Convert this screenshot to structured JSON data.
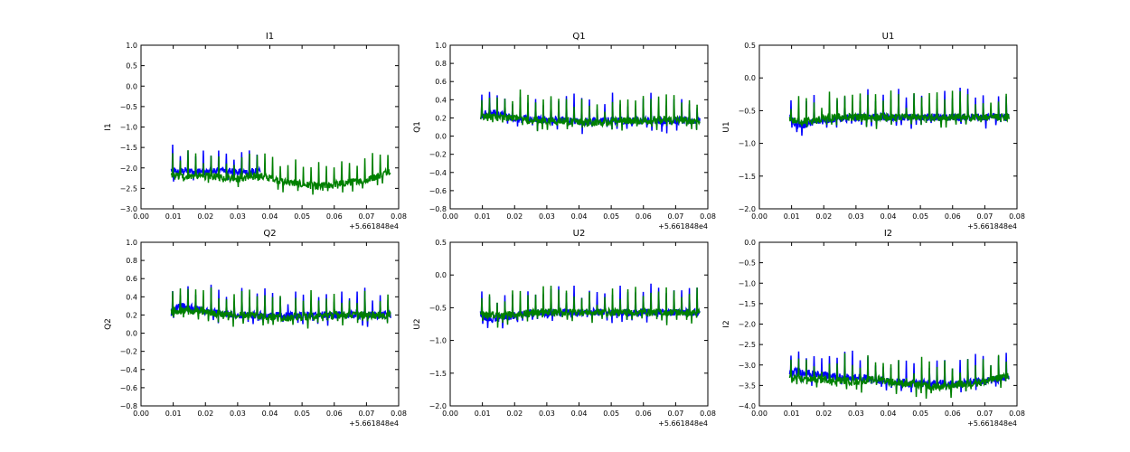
{
  "figure": {
    "background": "#ffffff",
    "series_colors": {
      "first": "#0000ff",
      "second": "#008000"
    }
  },
  "chart_data": [
    {
      "type": "line",
      "title": "I1",
      "xlabel": "",
      "ylabel": "I1",
      "xlim": [
        0.0,
        0.08
      ],
      "ylim": [
        -3.0,
        1.0
      ],
      "x_offset_label": "+5.661848e4",
      "x_ticks": [
        0.0,
        0.01,
        0.02,
        0.03,
        0.04,
        0.05,
        0.06,
        0.07,
        0.08
      ],
      "y_ticks": [
        -3.0,
        -2.5,
        -2.0,
        -1.5,
        -1.0,
        -0.5,
        0.0,
        0.5,
        1.0
      ],
      "series": [
        {
          "color": "#0000ff",
          "x": [
            0.0094,
            0.012,
            0.015,
            0.02,
            0.025,
            0.03,
            0.035,
            0.037
          ],
          "y": [
            -2.05,
            -2.1,
            -2.05,
            -2.1,
            -2.05,
            -2.1,
            -2.1,
            -2.1
          ]
        },
        {
          "color": "#008000",
          "x": [
            0.0094,
            0.015,
            0.02,
            0.03,
            0.037,
            0.04,
            0.045,
            0.05,
            0.055,
            0.06,
            0.065,
            0.07,
            0.075,
            0.0775
          ],
          "y": [
            -2.2,
            -2.2,
            -2.2,
            -2.25,
            -2.2,
            -2.25,
            -2.35,
            -2.4,
            -2.45,
            -2.4,
            -2.35,
            -2.3,
            -2.15,
            -2.05
          ]
        }
      ]
    },
    {
      "type": "line",
      "title": "Q1",
      "xlabel": "",
      "ylabel": "Q1",
      "xlim": [
        0.0,
        0.08
      ],
      "ylim": [
        -0.8,
        1.0
      ],
      "x_offset_label": "+5.661848e4",
      "x_ticks": [
        0.0,
        0.01,
        0.02,
        0.03,
        0.04,
        0.05,
        0.06,
        0.07,
        0.08
      ],
      "y_ticks": [
        -0.8,
        -0.6,
        -0.4,
        -0.2,
        0.0,
        0.2,
        0.4,
        0.6,
        0.8,
        1.0
      ],
      "series": [
        {
          "color": "#0000ff",
          "x": [
            0.0094,
            0.011,
            0.013,
            0.015,
            0.02,
            0.025,
            0.03,
            0.035,
            0.04,
            0.05,
            0.06,
            0.07,
            0.0775
          ],
          "y": [
            0.2,
            0.25,
            0.26,
            0.24,
            0.2,
            0.18,
            0.18,
            0.18,
            0.16,
            0.17,
            0.17,
            0.17,
            0.17
          ]
        },
        {
          "color": "#008000",
          "x": [
            0.0094,
            0.015,
            0.02,
            0.025,
            0.03,
            0.035,
            0.04,
            0.045,
            0.05,
            0.055,
            0.06,
            0.065,
            0.07,
            0.0775
          ],
          "y": [
            0.22,
            0.21,
            0.2,
            0.18,
            0.17,
            0.17,
            0.15,
            0.15,
            0.16,
            0.17,
            0.17,
            0.18,
            0.18,
            0.17
          ]
        }
      ]
    },
    {
      "type": "line",
      "title": "U1",
      "xlabel": "",
      "ylabel": "U1",
      "xlim": [
        0.0,
        0.08
      ],
      "ylim": [
        -2.0,
        0.5
      ],
      "x_offset_label": "+5.661848e4",
      "x_ticks": [
        0.0,
        0.01,
        0.02,
        0.03,
        0.04,
        0.05,
        0.06,
        0.07,
        0.08
      ],
      "y_ticks": [
        -2.0,
        -1.5,
        -1.0,
        -0.5,
        0.0,
        0.5
      ],
      "series": [
        {
          "color": "#0000ff",
          "x": [
            0.0094,
            0.011,
            0.013,
            0.015,
            0.02,
            0.025,
            0.03,
            0.035,
            0.04,
            0.05,
            0.06,
            0.07,
            0.0775
          ],
          "y": [
            -0.62,
            -0.7,
            -0.72,
            -0.7,
            -0.65,
            -0.62,
            -0.6,
            -0.6,
            -0.6,
            -0.6,
            -0.6,
            -0.6,
            -0.6
          ]
        },
        {
          "color": "#008000",
          "x": [
            0.0094,
            0.015,
            0.02,
            0.025,
            0.03,
            0.035,
            0.04,
            0.05,
            0.06,
            0.07,
            0.0775
          ],
          "y": [
            -0.65,
            -0.66,
            -0.63,
            -0.6,
            -0.6,
            -0.6,
            -0.6,
            -0.6,
            -0.6,
            -0.6,
            -0.6
          ]
        }
      ]
    },
    {
      "type": "line",
      "title": "Q2",
      "xlabel": "",
      "ylabel": "Q2",
      "xlim": [
        0.0,
        0.08
      ],
      "ylim": [
        -0.8,
        1.0
      ],
      "x_offset_label": "+5.661848e4",
      "x_ticks": [
        0.0,
        0.01,
        0.02,
        0.03,
        0.04,
        0.05,
        0.06,
        0.07,
        0.08
      ],
      "y_ticks": [
        -0.8,
        -0.6,
        -0.4,
        -0.2,
        0.0,
        0.2,
        0.4,
        0.6,
        0.8,
        1.0
      ],
      "series": [
        {
          "color": "#0000ff",
          "x": [
            0.0094,
            0.011,
            0.013,
            0.015,
            0.02,
            0.025,
            0.03,
            0.035,
            0.04,
            0.05,
            0.06,
            0.07,
            0.0775
          ],
          "y": [
            0.22,
            0.28,
            0.3,
            0.28,
            0.24,
            0.22,
            0.2,
            0.2,
            0.19,
            0.2,
            0.2,
            0.2,
            0.2
          ]
        },
        {
          "color": "#008000",
          "x": [
            0.0094,
            0.015,
            0.02,
            0.025,
            0.03,
            0.035,
            0.04,
            0.045,
            0.05,
            0.055,
            0.06,
            0.065,
            0.07,
            0.0775
          ],
          "y": [
            0.24,
            0.25,
            0.23,
            0.21,
            0.2,
            0.2,
            0.18,
            0.17,
            0.18,
            0.19,
            0.2,
            0.2,
            0.2,
            0.19
          ]
        }
      ]
    },
    {
      "type": "line",
      "title": "U2",
      "xlabel": "",
      "ylabel": "U2",
      "xlim": [
        0.0,
        0.08
      ],
      "ylim": [
        -2.0,
        0.5
      ],
      "x_offset_label": "+5.661848e4",
      "x_ticks": [
        0.0,
        0.01,
        0.02,
        0.03,
        0.04,
        0.05,
        0.06,
        0.07,
        0.08
      ],
      "y_ticks": [
        -2.0,
        -1.5,
        -1.0,
        -0.5,
        0.0,
        0.5
      ],
      "series": [
        {
          "color": "#0000ff",
          "x": [
            0.0094,
            0.011,
            0.013,
            0.015,
            0.02,
            0.025,
            0.03,
            0.035,
            0.04,
            0.05,
            0.06,
            0.07,
            0.0775
          ],
          "y": [
            -0.58,
            -0.65,
            -0.68,
            -0.66,
            -0.62,
            -0.58,
            -0.57,
            -0.57,
            -0.57,
            -0.57,
            -0.57,
            -0.57,
            -0.57
          ]
        },
        {
          "color": "#008000",
          "x": [
            0.0094,
            0.015,
            0.02,
            0.025,
            0.03,
            0.035,
            0.04,
            0.05,
            0.06,
            0.07,
            0.0775
          ],
          "y": [
            -0.6,
            -0.62,
            -0.6,
            -0.58,
            -0.57,
            -0.57,
            -0.57,
            -0.57,
            -0.57,
            -0.57,
            -0.57
          ]
        }
      ]
    },
    {
      "type": "line",
      "title": "I2",
      "xlabel": "",
      "ylabel": "I2",
      "xlim": [
        0.0,
        0.08
      ],
      "ylim": [
        -4.0,
        0.0
      ],
      "x_offset_label": "+5.661848e4",
      "x_ticks": [
        0.0,
        0.01,
        0.02,
        0.03,
        0.04,
        0.05,
        0.06,
        0.07,
        0.08
      ],
      "y_ticks": [
        -4.0,
        -3.5,
        -3.0,
        -2.5,
        -2.0,
        -1.5,
        -1.0,
        -0.5,
        0.0
      ],
      "series": [
        {
          "color": "#0000ff",
          "x": [
            0.0094,
            0.012,
            0.015,
            0.02,
            0.025,
            0.03,
            0.035,
            0.04,
            0.05,
            0.06,
            0.07,
            0.0775
          ],
          "y": [
            -3.2,
            -3.15,
            -3.2,
            -3.25,
            -3.3,
            -3.3,
            -3.35,
            -3.4,
            -3.45,
            -3.45,
            -3.4,
            -3.3
          ]
        },
        {
          "color": "#008000",
          "x": [
            0.0094,
            0.015,
            0.02,
            0.03,
            0.037,
            0.04,
            0.045,
            0.05,
            0.055,
            0.06,
            0.065,
            0.07,
            0.075,
            0.0775
          ],
          "y": [
            -3.3,
            -3.35,
            -3.35,
            -3.4,
            -3.35,
            -3.4,
            -3.45,
            -3.5,
            -3.55,
            -3.5,
            -3.45,
            -3.4,
            -3.3,
            -3.25
          ]
        }
      ]
    }
  ]
}
